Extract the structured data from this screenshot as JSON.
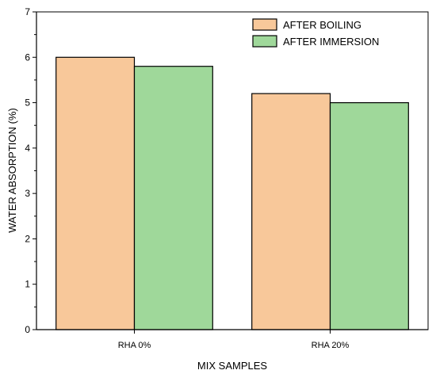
{
  "chart_data": {
    "type": "bar",
    "title": "",
    "xlabel": "MIX SAMPLES",
    "ylabel": "WATER ABSORPTION (%)",
    "categories": [
      "RHA 0%",
      "RHA 20%"
    ],
    "series": [
      {
        "name": "AFTER BOILING",
        "values": [
          6.0,
          5.2
        ],
        "color": "#f8c89a"
      },
      {
        "name": "AFTER IMMERSION",
        "values": [
          5.8,
          5.0
        ],
        "color": "#9fd89a"
      }
    ],
    "ylim": [
      0,
      7
    ],
    "yticks": [
      "0",
      "1",
      "2",
      "3",
      "4",
      "5",
      "6",
      "7"
    ],
    "grid": false,
    "legend_position": "top-right"
  }
}
